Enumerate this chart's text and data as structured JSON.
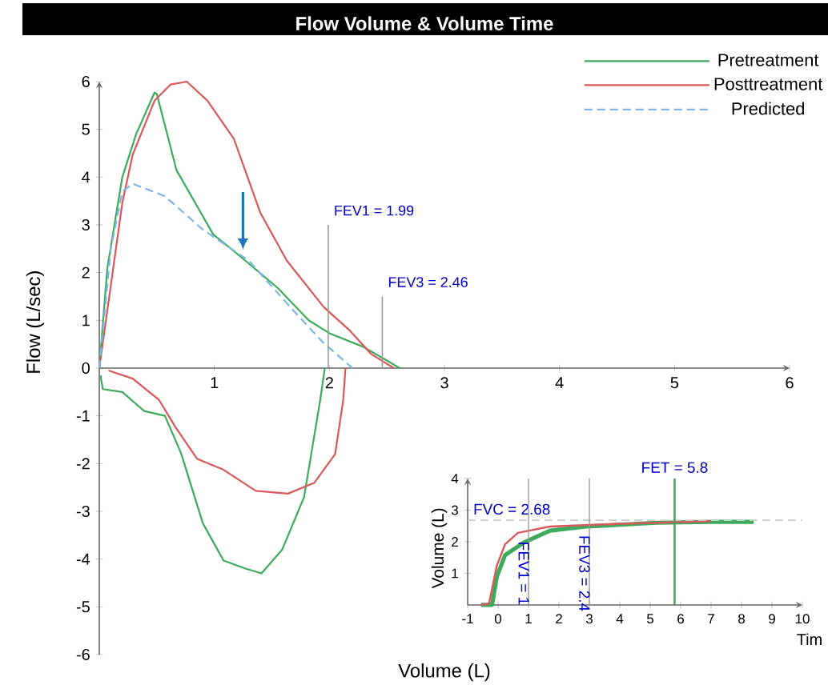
{
  "chart_data": [
    {
      "type": "line",
      "title": "Flow Volume & Volume Time",
      "xlabel": "Volume (L)",
      "ylabel": "Flow (L/sec)",
      "xlim": [
        0,
        6
      ],
      "ylim": [
        -6,
        6
      ],
      "xticks": [
        1,
        2,
        3,
        4,
        5,
        6
      ],
      "yticks": [
        -6,
        -5,
        -4,
        -3,
        -2,
        -1,
        0,
        1,
        2,
        3,
        4,
        5,
        6
      ],
      "legend": "top right",
      "series": [
        {
          "name": "Pretreatment",
          "color": "#3daa5c",
          "x": [
            0,
            0.07,
            0.2,
            0.32,
            0.48,
            0.5,
            0.67,
            0.99,
            1.22,
            1.55,
            1.82,
            2.0,
            2.29,
            2.47,
            2.61
          ],
          "values": [
            0,
            2.1,
            4.0,
            4.9,
            5.77,
            5.74,
            4.15,
            2.8,
            2.35,
            1.68,
            1.0,
            0.73,
            0.45,
            0.2,
            0
          ]
        },
        {
          "name": "Posttreatment",
          "color": "#d9585a",
          "x": [
            0,
            0.2,
            0.29,
            0.48,
            0.62,
            0.76,
            0.94,
            1.17,
            1.4,
            1.63,
            1.95,
            2.18,
            2.36,
            2.56
          ],
          "values": [
            0,
            3.46,
            4.47,
            5.6,
            5.94,
            6.0,
            5.6,
            4.8,
            3.25,
            2.25,
            1.28,
            0.78,
            0.3,
            0
          ]
        },
        {
          "name": "Predicted",
          "color": "#7fb6e3",
          "line_style": "dashed",
          "x": [
            0,
            0.1,
            0.2,
            0.29,
            0.57,
            0.9,
            1.3,
            1.67,
            1.94,
            2.2
          ],
          "values": [
            0,
            2.5,
            3.7,
            3.86,
            3.6,
            2.9,
            2.25,
            1.25,
            0.55,
            0
          ]
        },
        {
          "color": "#3daa5c",
          "x": [
            0.01,
            0.03,
            0.2,
            0.39,
            0.57,
            0.71,
            0.9,
            1.08,
            1.27,
            1.41,
            1.59,
            1.78,
            1.92,
            1.96
          ],
          "values": [
            -0.15,
            -0.44,
            -0.5,
            -0.9,
            -1.0,
            -1.78,
            -3.25,
            -4.03,
            -4.2,
            -4.3,
            -3.8,
            -2.7,
            -0.67,
            0
          ]
        },
        {
          "color": "#d9585a",
          "x": [
            0.08,
            0.29,
            0.52,
            0.66,
            0.85,
            1.08,
            1.36,
            1.64,
            1.87,
            2.05,
            2.12,
            2.14
          ],
          "values": [
            -0.05,
            -0.22,
            -0.67,
            -1.23,
            -1.9,
            -2.13,
            -2.57,
            -2.63,
            -2.4,
            -1.8,
            -0.67,
            0
          ]
        }
      ],
      "ref_lines": [
        {
          "axis": "x",
          "value": 1.99,
          "label": "FEV1 = 1.99",
          "color": "#999999"
        },
        {
          "axis": "x",
          "value": 2.46,
          "label": "FEV3 = 2.46",
          "color": "#999999"
        }
      ]
    },
    {
      "type": "line",
      "xlabel": "Tim",
      "ylabel": "Volume (L)",
      "xlim": [
        -1,
        10
      ],
      "ylim": [
        0,
        4
      ],
      "xticks": [
        -1,
        0,
        1,
        2,
        3,
        4,
        5,
        6,
        7,
        8,
        9,
        10
      ],
      "yticks": [
        1,
        2,
        3,
        4
      ],
      "series": [
        {
          "color": "#3daa5c",
          "x": [
            -0.56,
            -0.2,
            -0.04,
            0.23,
            0.84,
            1.7,
            2.9,
            5.2,
            7,
            8.4
          ],
          "values": [
            0,
            0,
            0.9,
            1.58,
            1.97,
            2.35,
            2.48,
            2.6,
            2.63,
            2.63
          ]
        },
        {
          "color": "#d9585a",
          "x": [
            -0.56,
            -0.3,
            -0.04,
            0.23,
            0.65,
            1.7,
            3.47,
            5.2,
            7
          ],
          "values": [
            0,
            0.04,
            1.25,
            1.92,
            2.28,
            2.48,
            2.55,
            2.6,
            2.65
          ]
        }
      ],
      "ref_lines": [
        {
          "axis": "y",
          "value": 2.68,
          "label": "FVC = 2.68",
          "color": "#cccccc",
          "line_style": "dashed"
        },
        {
          "axis": "x",
          "value": 1,
          "label": "FEV1 = 1",
          "color": "#999999"
        },
        {
          "axis": "x",
          "value": 3,
          "label": "FEV3 = 2.4",
          "color": "#999999"
        },
        {
          "axis": "x",
          "value": 5.8,
          "label": "FET = 5.8",
          "color": "#3daa5c"
        }
      ]
    }
  ]
}
